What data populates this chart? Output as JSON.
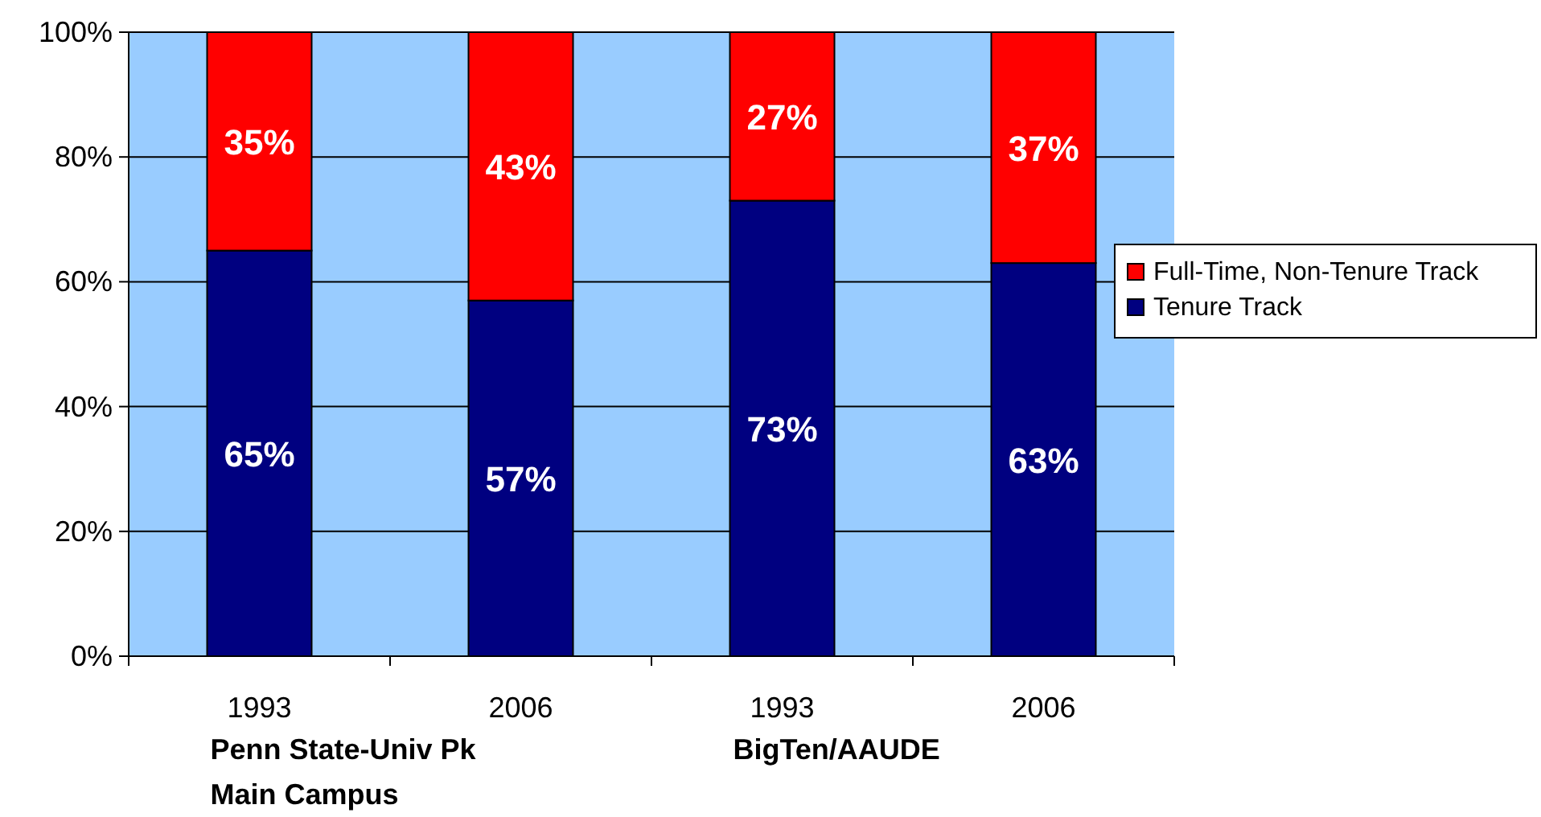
{
  "chart_data": {
    "type": "bar",
    "stacked": true,
    "categories": [
      "1993",
      "2006",
      "1993",
      "2006"
    ],
    "series": [
      {
        "name": "Tenure Track",
        "color": "#000080",
        "values": [
          65,
          57,
          73,
          63
        ],
        "value_labels": [
          "65%",
          "57%",
          "73%",
          "63%"
        ]
      },
      {
        "name": "Full-Time, Non-Tenure Track",
        "color": "#ff0000",
        "values": [
          35,
          43,
          27,
          37
        ],
        "value_labels": [
          "35%",
          "43%",
          "27%",
          "37%"
        ]
      }
    ],
    "ylim": [
      0,
      100
    ],
    "yticks": [
      {
        "value": 0,
        "label": "0%"
      },
      {
        "value": 20,
        "label": "20%"
      },
      {
        "value": 40,
        "label": "40%"
      },
      {
        "value": 60,
        "label": "60%"
      },
      {
        "value": 80,
        "label": "80%"
      },
      {
        "value": 100,
        "label": "100%"
      }
    ],
    "grid": "y",
    "legend": "right",
    "annotations": [
      "Penn State-Univ Pk\nMain Campus",
      "BigTen/AAUDE"
    ]
  }
}
